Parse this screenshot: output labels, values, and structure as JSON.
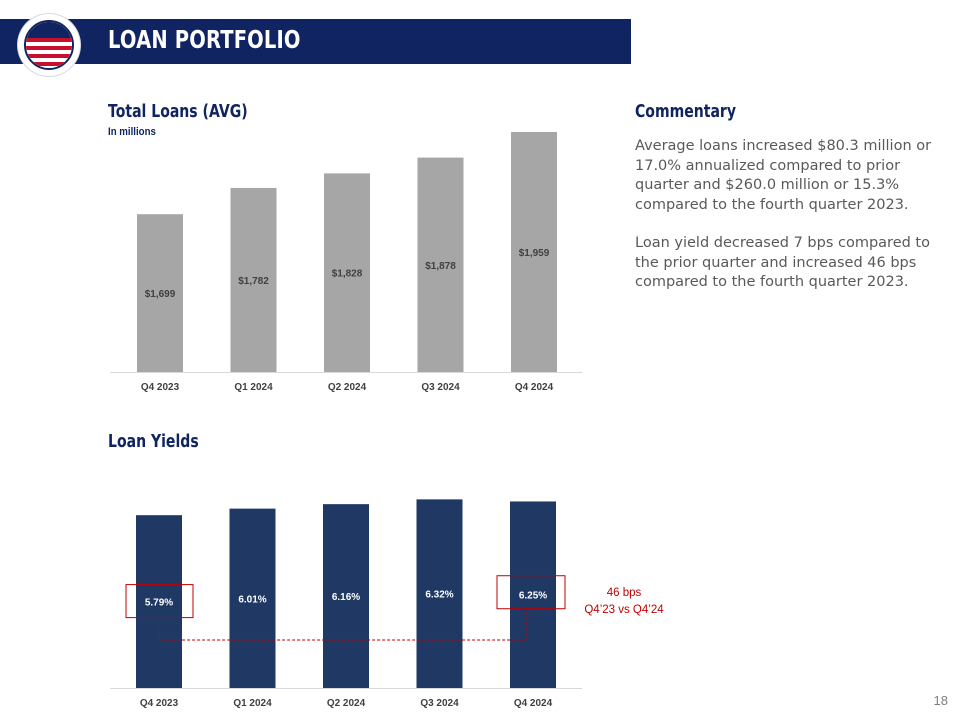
{
  "header": {
    "title": "LOAN PORTFOLIO"
  },
  "colors": {
    "navy": "#1f3864",
    "gray": "#a6a6a6",
    "red": "#c00000"
  },
  "chart_data": [
    {
      "type": "bar",
      "title": "Total Loans (AVG)",
      "subtitle": "In millions",
      "categories": [
        "Q4 2023",
        "Q1 2024",
        "Q2 2024",
        "Q3 2024",
        "Q4 2024"
      ],
      "values": [
        1699,
        1782,
        1828,
        1878,
        1959
      ],
      "labels": [
        "$1,699",
        "$1,782",
        "$1,828",
        "$1,878",
        "$1,959"
      ],
      "ylim": [
        1200,
        2000
      ],
      "color": "#a6a6a6"
    },
    {
      "type": "bar",
      "title": "Loan Yields",
      "categories": [
        "Q4 2023",
        "Q1 2024",
        "Q2 2024",
        "Q3 2024",
        "Q4 2024"
      ],
      "values": [
        5.79,
        6.01,
        6.16,
        6.32,
        6.25
      ],
      "labels": [
        "5.79%",
        "6.01%",
        "6.16%",
        "6.32%",
        "6.25%"
      ],
      "ylim": [
        0,
        6.5
      ],
      "color": "#1f3864",
      "annotation": {
        "line1": "46 bps",
        "line2": "Q4’23 vs Q4’24"
      }
    }
  ],
  "commentary": {
    "title": "Commentary",
    "paragraphs": [
      "Average loans increased $80.3 million or 17.0% annualized compared to prior quarter and $260.0 million or 15.3% compared to the fourth quarter 2023.",
      "Loan yield decreased 7 bps compared to the prior quarter and increased 46 bps compared to the fourth quarter 2023."
    ]
  },
  "page_number": "18"
}
